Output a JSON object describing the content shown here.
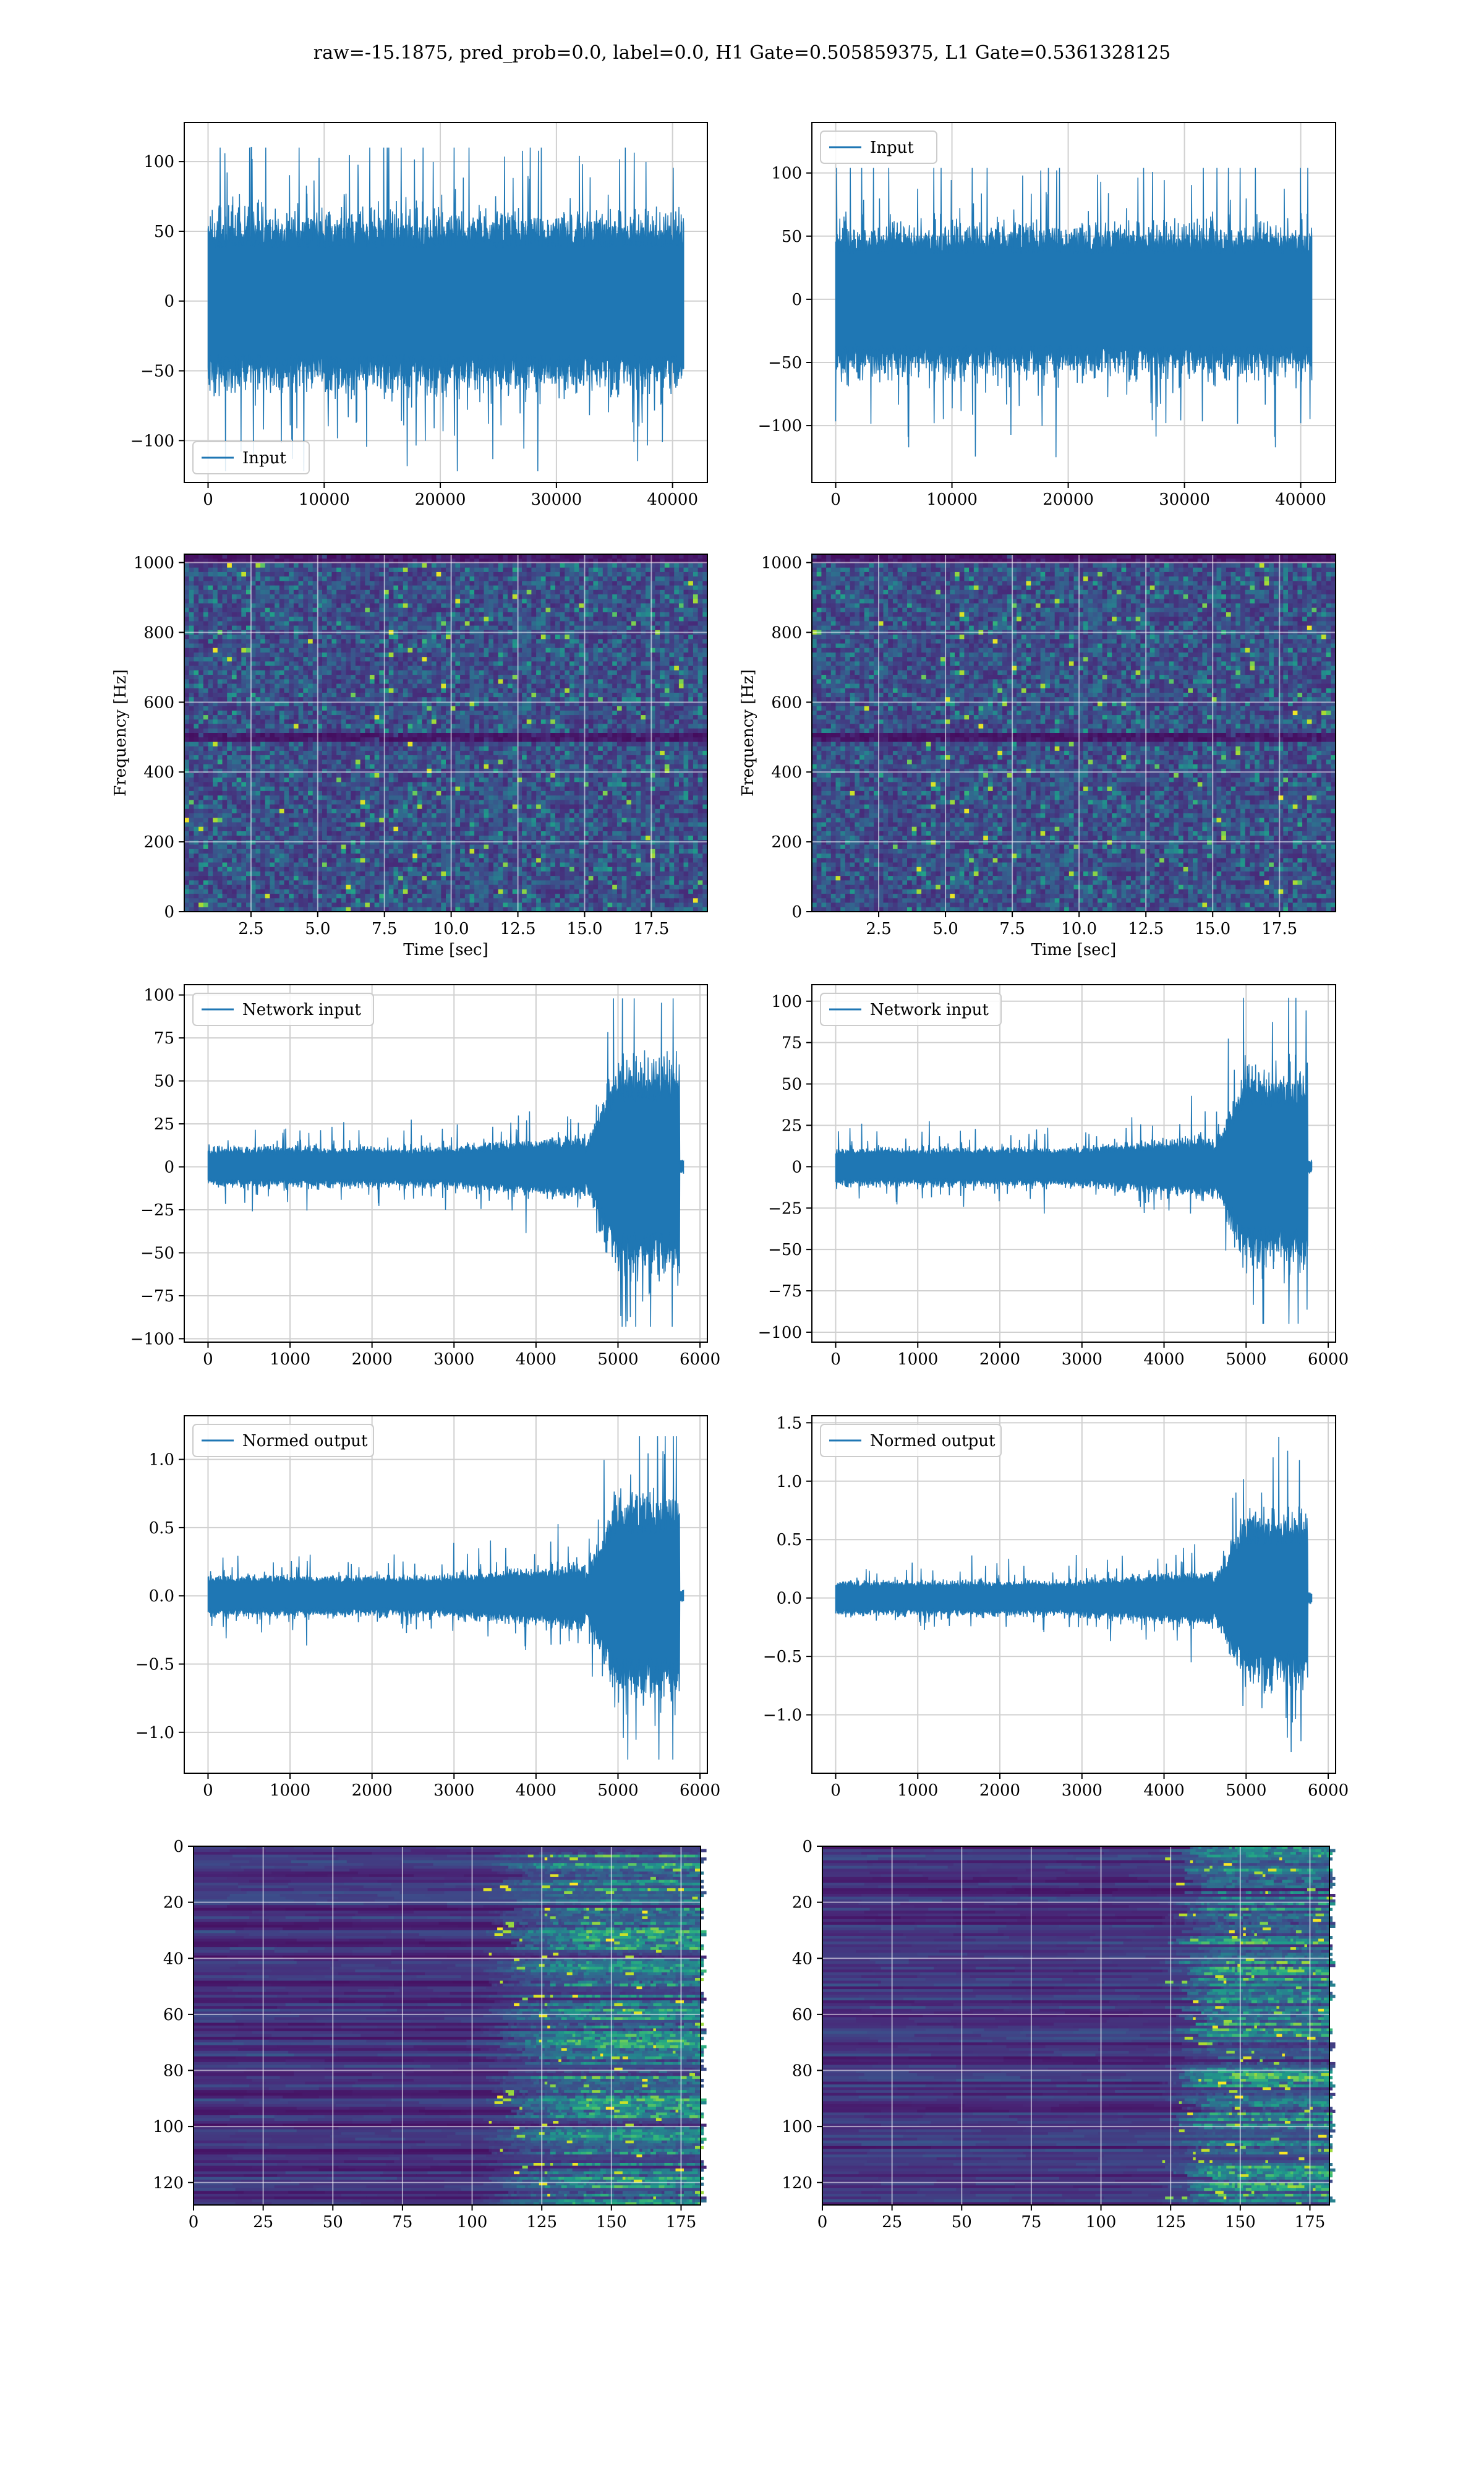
{
  "figure": {
    "title": "raw=-15.1875, pred_prob=0.0, label=0.0, H1 Gate=0.505859375, L1 Gate=0.5361328125",
    "line_color": "#1f77b4",
    "grid_color": "#d0d0d0",
    "colormap": "viridis"
  },
  "chart_data": [
    {
      "id": "input-h1",
      "type": "line",
      "legend": [
        "Input"
      ],
      "legend_loc": "lower-left",
      "series": [
        {
          "name": "Input",
          "x_range": [
            0,
            40960
          ],
          "envelope": "stationary",
          "amplitude": 38,
          "spike_max": 110,
          "spike_min": -122
        }
      ],
      "xlim": [
        -2050,
        43000
      ],
      "ylim": [
        -130,
        128
      ],
      "xticks": [
        0,
        10000,
        20000,
        30000,
        40000
      ],
      "yticks": [
        -100,
        -50,
        0,
        50,
        100
      ],
      "xlabel": "",
      "ylabel": "",
      "grid": true
    },
    {
      "id": "input-l1",
      "type": "line",
      "legend": [
        "Input"
      ],
      "legend_loc": "upper-left",
      "series": [
        {
          "name": "Input",
          "x_range": [
            0,
            40960
          ],
          "envelope": "stationary",
          "amplitude": 36,
          "spike_max": 104,
          "spike_min": -125
        }
      ],
      "xlim": [
        -2050,
        43000
      ],
      "ylim": [
        -145,
        140
      ],
      "xticks": [
        0,
        10000,
        20000,
        30000,
        40000
      ],
      "yticks": [
        -100,
        -50,
        0,
        50,
        100
      ],
      "xlabel": "",
      "ylabel": "",
      "grid": true
    },
    {
      "id": "spectrogram-h1",
      "type": "heatmap",
      "xlim": [
        0,
        19.6
      ],
      "ylim": [
        0,
        1024
      ],
      "xticks": [
        2.5,
        5.0,
        7.5,
        10.0,
        12.5,
        15.0,
        17.5
      ],
      "yticks": [
        0,
        200,
        400,
        600,
        800,
        1000
      ],
      "xlabel": "Time [sec]",
      "ylabel": "Frequency [Hz]",
      "dark_bands_hz": [
        500,
        1010
      ],
      "grid": true
    },
    {
      "id": "spectrogram-l1",
      "type": "heatmap",
      "xlim": [
        0,
        19.6
      ],
      "ylim": [
        0,
        1024
      ],
      "xticks": [
        2.5,
        5.0,
        7.5,
        10.0,
        12.5,
        15.0,
        17.5
      ],
      "yticks": [
        0,
        200,
        400,
        600,
        800,
        1000
      ],
      "xlabel": "Time [sec]",
      "ylabel": "Frequency [Hz]",
      "dark_bands_hz": [
        500,
        1010
      ],
      "grid": true
    },
    {
      "id": "network-input-h1",
      "type": "line",
      "legend": [
        "Network input"
      ],
      "legend_loc": "upper-left",
      "series": [
        {
          "name": "Network input",
          "x_range": [
            0,
            5800
          ],
          "envelope": "chirp",
          "amplitude": 7,
          "burst_start": 4600,
          "burst_end": 5750,
          "burst_amplitude": 38,
          "spike_max": 98,
          "spike_min": -93
        }
      ],
      "xlim": [
        -290,
        6090
      ],
      "ylim": [
        -102,
        106
      ],
      "xticks": [
        0,
        1000,
        2000,
        3000,
        4000,
        5000,
        6000
      ],
      "yticks": [
        -100,
        -75,
        -50,
        -25,
        0,
        25,
        50,
        75,
        100
      ],
      "xlabel": "",
      "ylabel": "",
      "grid": true
    },
    {
      "id": "network-input-l1",
      "type": "line",
      "legend": [
        "Network input"
      ],
      "legend_loc": "upper-left",
      "series": [
        {
          "name": "Network input",
          "x_range": [
            0,
            5800
          ],
          "envelope": "chirp",
          "amplitude": 7,
          "burst_start": 4600,
          "burst_end": 5750,
          "burst_amplitude": 36,
          "spike_max": 102,
          "spike_min": -95
        }
      ],
      "xlim": [
        -290,
        6090
      ],
      "ylim": [
        -106,
        110
      ],
      "xticks": [
        0,
        1000,
        2000,
        3000,
        4000,
        5000,
        6000
      ],
      "yticks": [
        -100,
        -75,
        -50,
        -25,
        0,
        25,
        50,
        75,
        100
      ],
      "xlabel": "",
      "ylabel": "",
      "grid": true
    },
    {
      "id": "normed-output-h1",
      "type": "line",
      "legend": [
        "Normed output"
      ],
      "legend_loc": "upper-left",
      "series": [
        {
          "name": "Normed output",
          "x_range": [
            0,
            5800
          ],
          "envelope": "chirp",
          "amplitude": 0.09,
          "burst_start": 4600,
          "burst_end": 5750,
          "burst_amplitude": 0.45,
          "spike_max": 1.17,
          "spike_min": -1.2
        }
      ],
      "xlim": [
        -290,
        6090
      ],
      "ylim": [
        -1.3,
        1.32
      ],
      "xticks": [
        0,
        1000,
        2000,
        3000,
        4000,
        5000,
        6000
      ],
      "yticks": [
        -1.0,
        -0.5,
        0.0,
        0.5,
        1.0
      ],
      "xlabel": "",
      "ylabel": "",
      "grid": true
    },
    {
      "id": "normed-output-l1",
      "type": "line",
      "legend": [
        "Normed output"
      ],
      "legend_loc": "upper-left",
      "series": [
        {
          "name": "Normed output",
          "x_range": [
            0,
            5800
          ],
          "envelope": "chirp",
          "amplitude": 0.09,
          "burst_start": 4600,
          "burst_end": 5750,
          "burst_amplitude": 0.45,
          "spike_max": 1.38,
          "spike_min": -1.32
        }
      ],
      "xlim": [
        -290,
        6090
      ],
      "ylim": [
        -1.5,
        1.56
      ],
      "xticks": [
        0,
        1000,
        2000,
        3000,
        4000,
        5000,
        6000
      ],
      "yticks": [
        -1.0,
        -0.5,
        0.0,
        0.5,
        1.0,
        1.5
      ],
      "xlabel": "",
      "ylabel": "",
      "grid": true
    },
    {
      "id": "feature-map-h1",
      "type": "heatmap",
      "xlim": [
        0,
        182
      ],
      "ylim": [
        128,
        0
      ],
      "xticks": [
        0,
        25,
        50,
        75,
        100,
        125,
        150,
        175
      ],
      "yticks": [
        0,
        20,
        40,
        60,
        80,
        100,
        120
      ],
      "activity_onset_x": 100,
      "activity_strong_x": 140,
      "xlabel": "",
      "ylabel": "",
      "grid": true
    },
    {
      "id": "feature-map-l1",
      "type": "heatmap",
      "xlim": [
        0,
        182
      ],
      "ylim": [
        128,
        0
      ],
      "xticks": [
        0,
        25,
        50,
        75,
        100,
        125,
        150,
        175
      ],
      "yticks": [
        0,
        20,
        40,
        60,
        80,
        100,
        120
      ],
      "activity_onset_x": 120,
      "activity_strong_x": 140,
      "xlabel": "",
      "ylabel": "",
      "grid": true
    }
  ]
}
